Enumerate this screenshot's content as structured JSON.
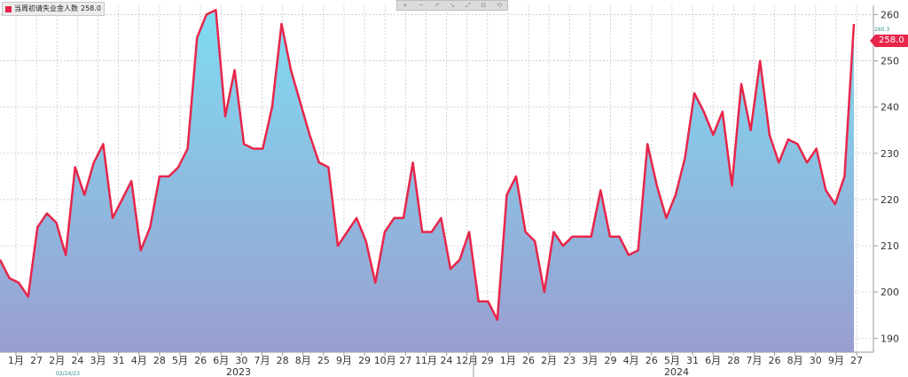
{
  "legend": {
    "label": "当周初请失业金人数",
    "value": "258.0"
  },
  "toolbar": {
    "icons": [
      "+",
      "~",
      "↗",
      "↘",
      "⤢",
      "⊟",
      "⟲"
    ]
  },
  "last_value_badge": "258.0",
  "max_marker": "260.3",
  "cursor_date": "02/24/23",
  "colors": {
    "line": "#e8254a",
    "fill_top": "#7fdcf2",
    "fill_bottom": "#9a9ed0",
    "grid": "#c9c9c9"
  },
  "chart_data": {
    "type": "area",
    "title": "",
    "ylim": [
      187,
      262
    ],
    "yticks": [
      190,
      200,
      210,
      220,
      230,
      240,
      250,
      260
    ],
    "ytick_labels": [
      "190",
      "200",
      "210",
      "220",
      "230",
      "240",
      "250",
      "260"
    ],
    "grid": true,
    "legend_position": "top-left",
    "x_tick_labels": [
      "1月",
      "27",
      "2月",
      "24",
      "3月",
      "31",
      "4月",
      "28",
      "5月",
      "26",
      "6月",
      "30",
      "7月",
      "28",
      "8月",
      "25",
      "9月",
      "29",
      "10月",
      "27",
      "11月",
      "24",
      "12月",
      "29",
      "1月",
      "26",
      "2月",
      "23",
      "3月",
      "29",
      "4月",
      "26",
      "5月",
      "31",
      "6月",
      "28",
      "7月",
      "26",
      "8月",
      "30",
      "9月",
      "27"
    ],
    "x_year_labels": [
      "2023",
      "2024"
    ],
    "series": [
      {
        "name": "当周初请失业金人数",
        "values": [
          207,
          203,
          202,
          199,
          214,
          217,
          215,
          208,
          227,
          221,
          228,
          232,
          216,
          220,
          224,
          209,
          214,
          225,
          225,
          227,
          231,
          255,
          260,
          261,
          238,
          248,
          232,
          231,
          231,
          240,
          258,
          248,
          241,
          234,
          228,
          227,
          210,
          213,
          216,
          211,
          202,
          213,
          216,
          216,
          228,
          213,
          213,
          216,
          205,
          207,
          213,
          198,
          198,
          194,
          221,
          225,
          213,
          211,
          200,
          213,
          210,
          212,
          212,
          212,
          222,
          212,
          212,
          208,
          209,
          232,
          223,
          216,
          221,
          229,
          243,
          239,
          234,
          239,
          223,
          245,
          235,
          250,
          234,
          228,
          233,
          232,
          228,
          231,
          222,
          219,
          225,
          258
        ]
      }
    ]
  }
}
